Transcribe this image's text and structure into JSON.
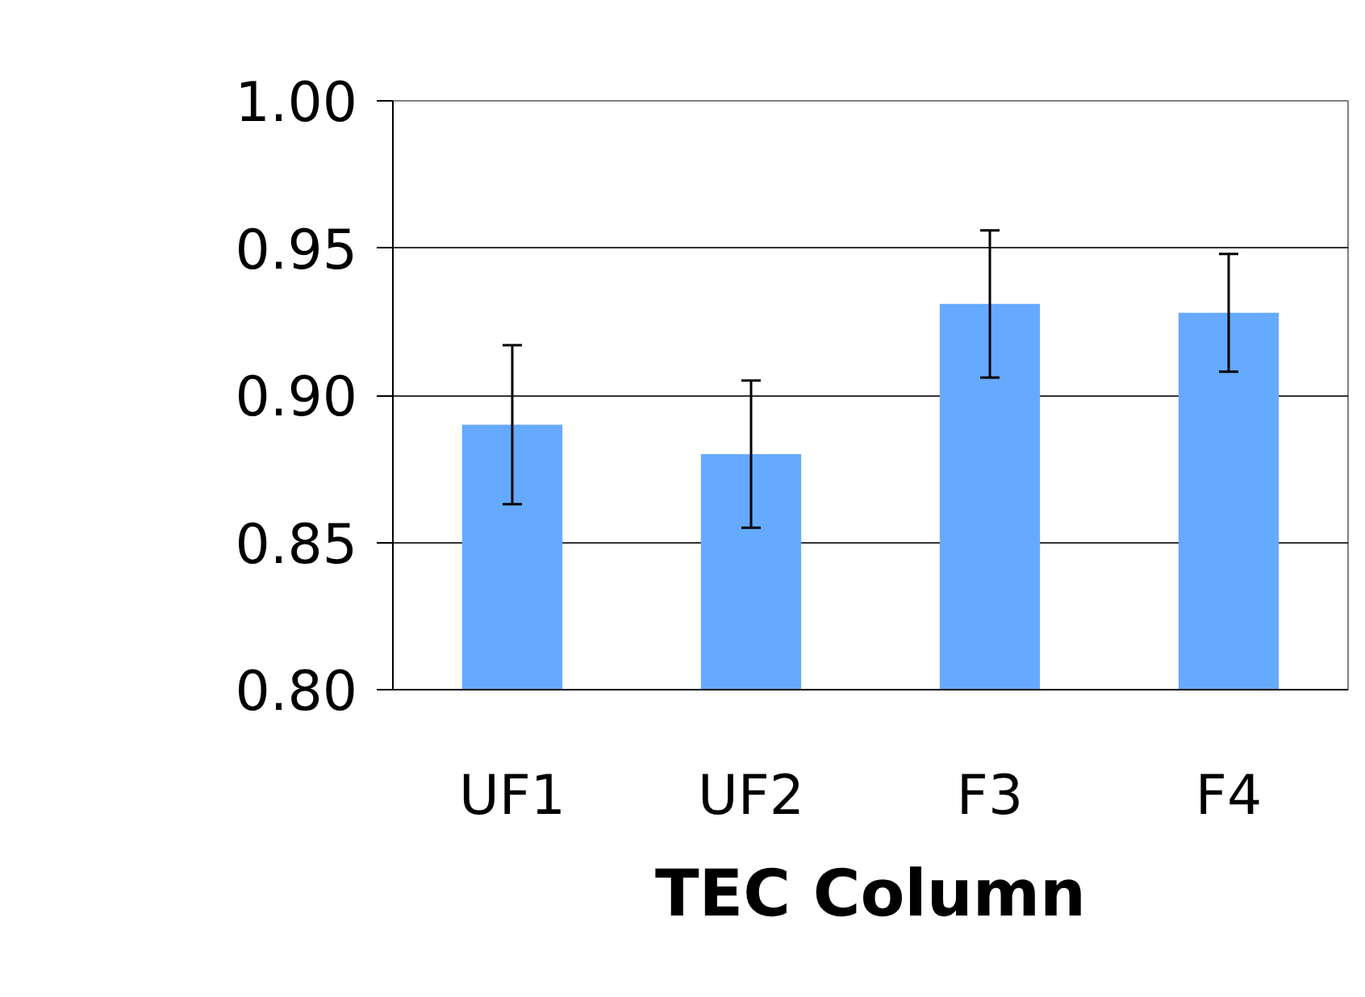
{
  "chart_data": {
    "type": "bar",
    "xlabel": "TEC Column",
    "categories": [
      "UF1",
      "UF2",
      "F3",
      "F4"
    ],
    "values": [
      0.89,
      0.88,
      0.931,
      0.928
    ],
    "errors": [
      0.027,
      0.025,
      0.025,
      0.02
    ],
    "color": "#66aaff",
    "ylim": [
      0.8,
      1.0
    ],
    "yticks": [
      {
        "value": 0.8,
        "label": "0.80"
      },
      {
        "value": 0.85,
        "label": "0.85"
      },
      {
        "value": 0.9,
        "label": "0.90"
      },
      {
        "value": 0.95,
        "label": "0.95"
      },
      {
        "value": 1.0,
        "label": "1.00"
      }
    ],
    "grid": "y"
  }
}
